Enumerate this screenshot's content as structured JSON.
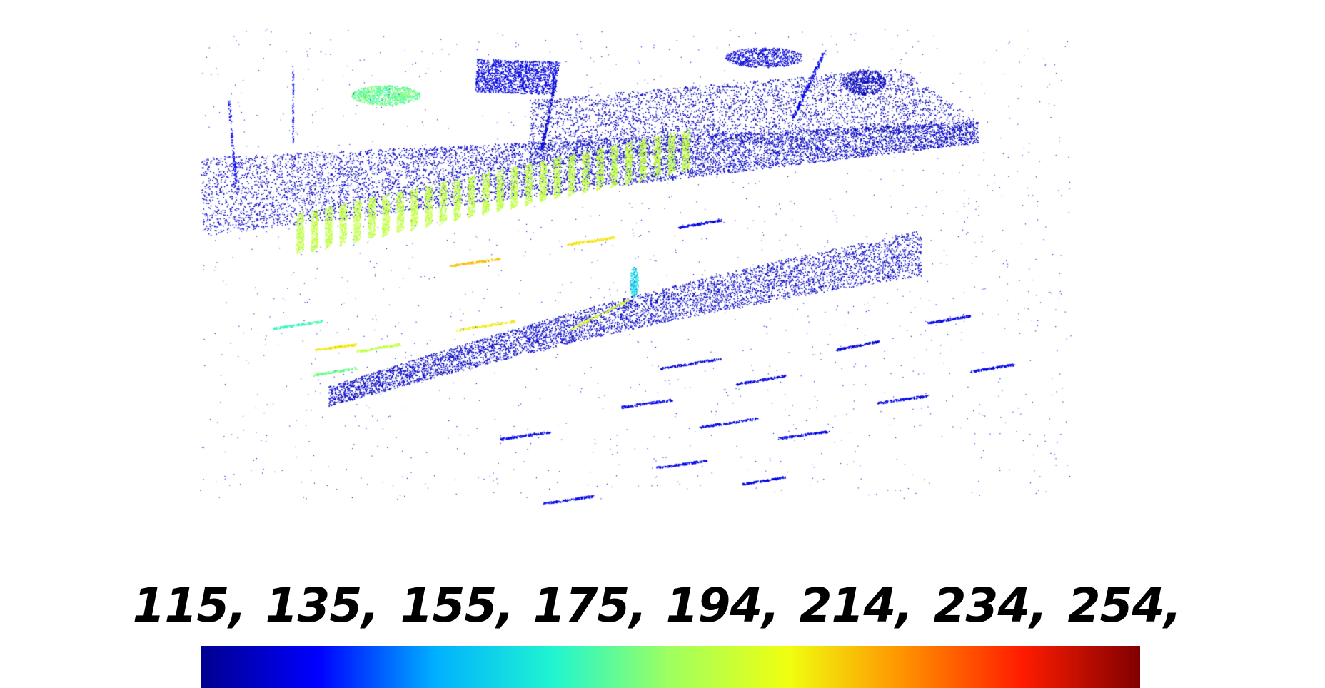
{
  "colorbar": {
    "ticks": [
      "115,",
      "135,",
      "155,",
      "175,",
      "194,",
      "214,",
      "234,",
      "254,"
    ],
    "colors": [
      "#00008f",
      "#0000ff",
      "#00b0ff",
      "#1ff5d0",
      "#9fff5f",
      "#f0ff10",
      "#ff9000",
      "#ff1c00",
      "#800000"
    ]
  }
}
